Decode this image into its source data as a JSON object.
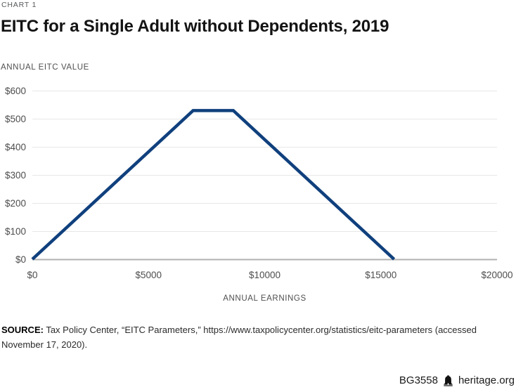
{
  "header": {
    "kicker": "CHART 1",
    "title": "EITC for a Single Adult without Dependents, 2019"
  },
  "chart_data": {
    "type": "line",
    "title": "EITC for a Single Adult without Dependents, 2019",
    "xlabel": "ANNUAL EARNINGS",
    "ylabel": "ANNUAL EITC VALUE",
    "x_min": 0,
    "x_max": 20000,
    "y_min": 0,
    "y_max": 600,
    "x_ticks": [
      0,
      5000,
      10000,
      15000,
      20000
    ],
    "x_tick_labels": [
      "$0",
      "$5000",
      "$10000",
      "$15000",
      "$20000"
    ],
    "y_ticks": [
      0,
      100,
      200,
      300,
      400,
      500,
      600
    ],
    "y_tick_labels": [
      "$0",
      "$100",
      "$200",
      "$300",
      "$400",
      "$500",
      "$600"
    ],
    "grid": "horizontal",
    "legend": "none",
    "series": [
      {
        "name": "Annual EITC value",
        "x": [
          0,
          6920,
          8650,
          15570
        ],
        "y": [
          0,
          529,
          529,
          0
        ]
      }
    ]
  },
  "colors": {
    "line": "#10407d",
    "gridline": "#e7e7e7",
    "baseline": "#b1b1b1",
    "tick_label": "#4d4d4d",
    "axis_title": "#4f4f4f",
    "kicker_text": "#58595b",
    "title_text": "#131313"
  },
  "footer": {
    "source_label": "SOURCE:",
    "source_text": " Tax Policy Center, “EITC Parameters,” https://www.taxpolicycenter.org/statistics/eitc-parameters (accessed November 17, 2020).",
    "doc_id": "BG3558",
    "site": "heritage.org",
    "logo": "liberty-bell-icon"
  }
}
